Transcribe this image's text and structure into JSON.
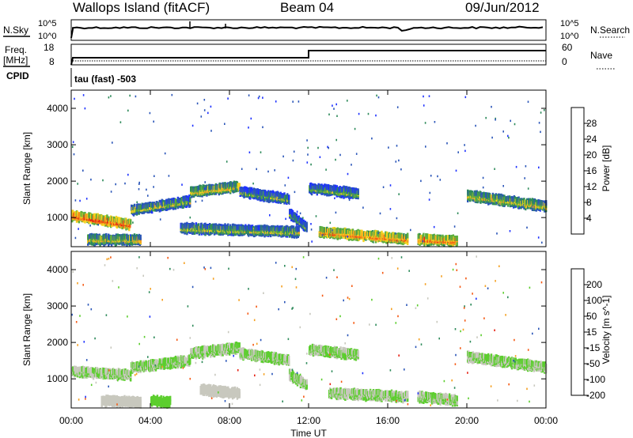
{
  "header": {
    "station": "Wallops Island (fitACF)",
    "beam": "Beam 04",
    "date": "09/Jun/2012"
  },
  "noise_panel": {
    "left_label": "N.Sky",
    "right_label": "N.Search",
    "left_ticks": [
      "10^5",
      "10^0"
    ],
    "right_ticks": [
      "10^5",
      "10^0"
    ]
  },
  "freq_panel": {
    "left_label_1": "Freq.",
    "left_label_2": "[MHz]",
    "left_ticks": [
      "18",
      "8"
    ],
    "right_label": "Nave",
    "right_ticks": [
      "60",
      "0"
    ]
  },
  "cpid": {
    "label": "CPID",
    "text": "tau (fast) -503"
  },
  "x_axis": {
    "label": "Time UT",
    "ticks": [
      "00:00",
      "04:00",
      "08:00",
      "12:00",
      "16:00",
      "20:00",
      "00:00"
    ]
  },
  "colors": {
    "power": [
      "#1e32ff",
      "#2a55b8",
      "#2d8a5a",
      "#5cae3e",
      "#f5d21e",
      "#f5a020",
      "#f55a14",
      "#e61e10"
    ],
    "velocity": [
      "#1e32ff",
      "#2a55b8",
      "#2d8a5a",
      "#5cce2e",
      "#c8c8be",
      "#f5a020",
      "#f55a14",
      "#e61e10"
    ]
  },
  "chart_data": [
    {
      "type": "heatmap",
      "name": "power",
      "ylabel": "Slant Range [km]",
      "yticks": [
        "1000",
        "2000",
        "3000",
        "4000"
      ],
      "ylim": [
        200,
        4500
      ],
      "xlim_hours": [
        0,
        24
      ],
      "colorbar": {
        "label": "Power [dB]",
        "ticks": [
          "4",
          "8",
          "12",
          "16",
          "20",
          "24",
          "28"
        ],
        "range": [
          0,
          32
        ]
      },
      "bands": [
        {
          "t0": 0.0,
          "t1": 3.0,
          "r0": 1150,
          "r1": 900,
          "value": 28
        },
        {
          "t0": 3.0,
          "t1": 6.0,
          "r0": 1300,
          "r1": 1550,
          "value": 18
        },
        {
          "t0": 6.0,
          "t1": 8.5,
          "r0": 1800,
          "r1": 1950,
          "value": 20
        },
        {
          "t0": 8.5,
          "t1": 11.0,
          "r0": 1800,
          "r1": 1600,
          "value": 16
        },
        {
          "t0": 11.0,
          "t1": 11.9,
          "r0": 1200,
          "r1": 800,
          "value": 14
        },
        {
          "t0": 12.0,
          "t1": 14.5,
          "r0": 1900,
          "r1": 1750,
          "value": 16
        },
        {
          "t0": 12.5,
          "t1": 17.0,
          "r0": 700,
          "r1": 500,
          "value": 26
        },
        {
          "t0": 17.5,
          "t1": 19.5,
          "r0": 500,
          "r1": 450,
          "value": 26
        },
        {
          "t0": 20.0,
          "t1": 24.0,
          "r0": 1700,
          "r1": 1400,
          "value": 20
        },
        {
          "t0": 5.5,
          "t1": 11.5,
          "r0": 800,
          "r1": 700,
          "value": 18
        },
        {
          "t0": 0.8,
          "t1": 3.5,
          "r0": 500,
          "r1": 480,
          "value": 20
        }
      ]
    },
    {
      "type": "heatmap",
      "name": "velocity",
      "ylabel": "Slant Range [km]",
      "yticks": [
        "1000",
        "2000",
        "3000",
        "4000"
      ],
      "ylim": [
        200,
        4500
      ],
      "xlim_hours": [
        0,
        24
      ],
      "colorbar": {
        "label": "Velocity [m s^-1]",
        "ticks": [
          "200",
          "100",
          "50",
          "15",
          "-15",
          "-50",
          "-100",
          "-200"
        ],
        "range": [
          -250,
          250
        ]
      },
      "bands": [
        {
          "t0": 0.0,
          "t1": 3.0,
          "r0": 1300,
          "r1": 1200,
          "value": 0
        },
        {
          "t0": 3.0,
          "t1": 6.0,
          "r0": 1400,
          "r1": 1600,
          "value": 0
        },
        {
          "t0": 6.0,
          "t1": 8.5,
          "r0": 1800,
          "r1": 1950,
          "value": 0
        },
        {
          "t0": 8.5,
          "t1": 11.0,
          "r0": 1800,
          "r1": 1600,
          "value": 0
        },
        {
          "t0": 11.0,
          "t1": 11.9,
          "r0": 1200,
          "r1": 900,
          "value": 0
        },
        {
          "t0": 12.0,
          "t1": 14.5,
          "r0": 1900,
          "r1": 1750,
          "value": 0
        },
        {
          "t0": 13.0,
          "t1": 17.0,
          "r0": 700,
          "r1": 600,
          "value": 0
        },
        {
          "t0": 17.5,
          "t1": 19.5,
          "r0": 600,
          "r1": 500,
          "value": 0
        },
        {
          "t0": 20.0,
          "t1": 24.0,
          "r0": 1700,
          "r1": 1400,
          "value": 0
        },
        {
          "t0": 6.5,
          "t1": 8.5,
          "r0": 800,
          "r1": 700,
          "value": 40
        },
        {
          "t0": 1.5,
          "t1": 3.5,
          "r0": 500,
          "r1": 450,
          "value": 40
        },
        {
          "t0": 4.0,
          "t1": 5.0,
          "r0": 500,
          "r1": 450,
          "value": -50
        }
      ]
    }
  ]
}
